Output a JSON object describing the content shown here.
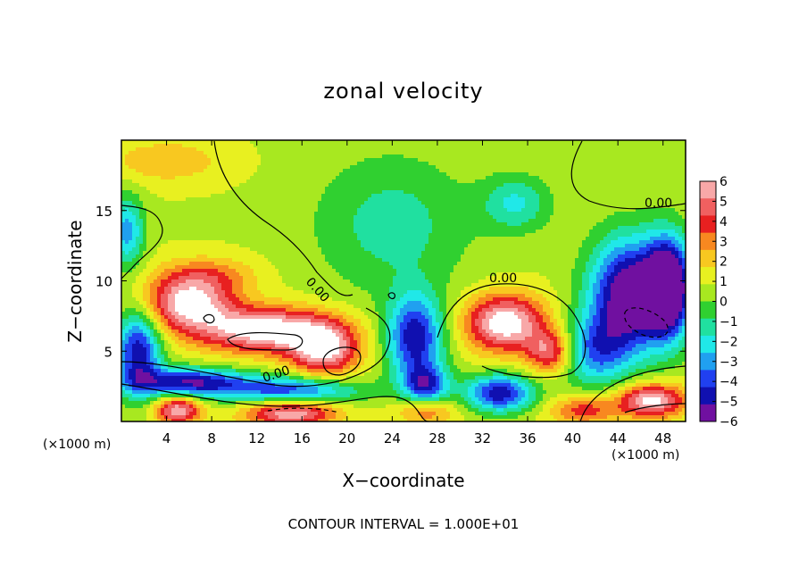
{
  "chart_data": {
    "type": "heatmap",
    "title": "zonal velocity",
    "xlabel": "X−coordinate",
    "ylabel": "Z−coordinate",
    "x_unit": "(×1000 m)",
    "xlim": [
      0,
      50
    ],
    "ylim": [
      0,
      20
    ],
    "x_ticks": [
      4,
      8,
      12,
      16,
      20,
      24,
      28,
      32,
      36,
      40,
      44,
      48
    ],
    "y_ticks": [
      5,
      10,
      15
    ],
    "colorbar": {
      "range": [
        -6,
        6
      ],
      "ticks": [
        "6",
        "5",
        "4",
        "3",
        "2",
        "1",
        "0",
        "−1",
        "−2",
        "−3",
        "−4",
        "−5",
        "−6"
      ],
      "colors": [
        "#f8a8a8",
        "#f06060",
        "#e82020",
        "#f88820",
        "#f8c820",
        "#e8f020",
        "#a8e820",
        "#30d030",
        "#20e0a0",
        "#20e8e8",
        "#20a0f0",
        "#2040f0",
        "#1010b0",
        "#7010a0"
      ]
    },
    "contour_label": "0.00",
    "contour_interval": "CONTOUR INTERVAL = 1.000E+01",
    "field_features": [
      {
        "kind": "background",
        "value": 0.8
      },
      {
        "kind": "blob",
        "x": 4,
        "y": 18.5,
        "sx": 5,
        "sy": 1.5,
        "value": 2.5
      },
      {
        "kind": "blob",
        "x": 24,
        "y": 14,
        "sx": 7,
        "sy": 5,
        "value": -1.3
      },
      {
        "kind": "blob",
        "x": 35,
        "y": 15.5,
        "sx": 3,
        "sy": 2,
        "value": -1.8
      },
      {
        "kind": "blob",
        "x": 6,
        "y": 8.5,
        "sx": 4,
        "sy": 2,
        "value": 6.5
      },
      {
        "kind": "blob",
        "x": 13,
        "y": 6.5,
        "sx": 6,
        "sy": 1.6,
        "value": 7
      },
      {
        "kind": "blob",
        "x": 18,
        "y": 5,
        "sx": 3,
        "sy": 1.8,
        "value": 6
      },
      {
        "kind": "blob",
        "x": 8,
        "y": 10.5,
        "sx": 4,
        "sy": 1.2,
        "value": 2.5
      },
      {
        "kind": "blob",
        "x": 34,
        "y": 7,
        "sx": 3.5,
        "sy": 2,
        "value": 7
      },
      {
        "kind": "blob",
        "x": 38,
        "y": 5,
        "sx": 2,
        "sy": 1.5,
        "value": 5
      },
      {
        "kind": "blob",
        "x": 0.5,
        "y": 13.5,
        "sx": 1.5,
        "sy": 2.5,
        "value": -3
      },
      {
        "kind": "blob",
        "x": 1.5,
        "y": 5,
        "sx": 2,
        "sy": 3,
        "value": -5
      },
      {
        "kind": "blob",
        "x": 6,
        "y": 2.8,
        "sx": 5,
        "sy": 1,
        "value": -5
      },
      {
        "kind": "blob",
        "x": 15,
        "y": 2.2,
        "sx": 6,
        "sy": 1,
        "value": -4
      },
      {
        "kind": "blob",
        "x": 26,
        "y": 6,
        "sx": 2.5,
        "sy": 3,
        "value": -5
      },
      {
        "kind": "blob",
        "x": 27,
        "y": 2.5,
        "sx": 2,
        "sy": 1.5,
        "value": -4
      },
      {
        "kind": "blob",
        "x": 33.5,
        "y": 2,
        "sx": 3,
        "sy": 1.3,
        "value": -5
      },
      {
        "kind": "blob",
        "x": 42,
        "y": 5,
        "sx": 3,
        "sy": 2.5,
        "value": -3
      },
      {
        "kind": "blob",
        "x": 45,
        "y": 9,
        "sx": 3.5,
        "sy": 4,
        "value": -6.5
      },
      {
        "kind": "blob",
        "x": 48.5,
        "y": 9.5,
        "sx": 2,
        "sy": 3.5,
        "value": -7
      },
      {
        "kind": "blob",
        "x": 5,
        "y": 0.8,
        "sx": 2,
        "sy": 1,
        "value": 6
      },
      {
        "kind": "blob",
        "x": 15,
        "y": 0.6,
        "sx": 4,
        "sy": 1,
        "value": 6
      },
      {
        "kind": "blob",
        "x": 27,
        "y": 0.8,
        "sx": 2.5,
        "sy": 1,
        "value": 4
      },
      {
        "kind": "blob",
        "x": 41,
        "y": 0.8,
        "sx": 3,
        "sy": 1,
        "value": 4
      },
      {
        "kind": "blob",
        "x": 47,
        "y": 1.5,
        "sx": 3,
        "sy": 1.2,
        "value": 6.5
      }
    ]
  }
}
